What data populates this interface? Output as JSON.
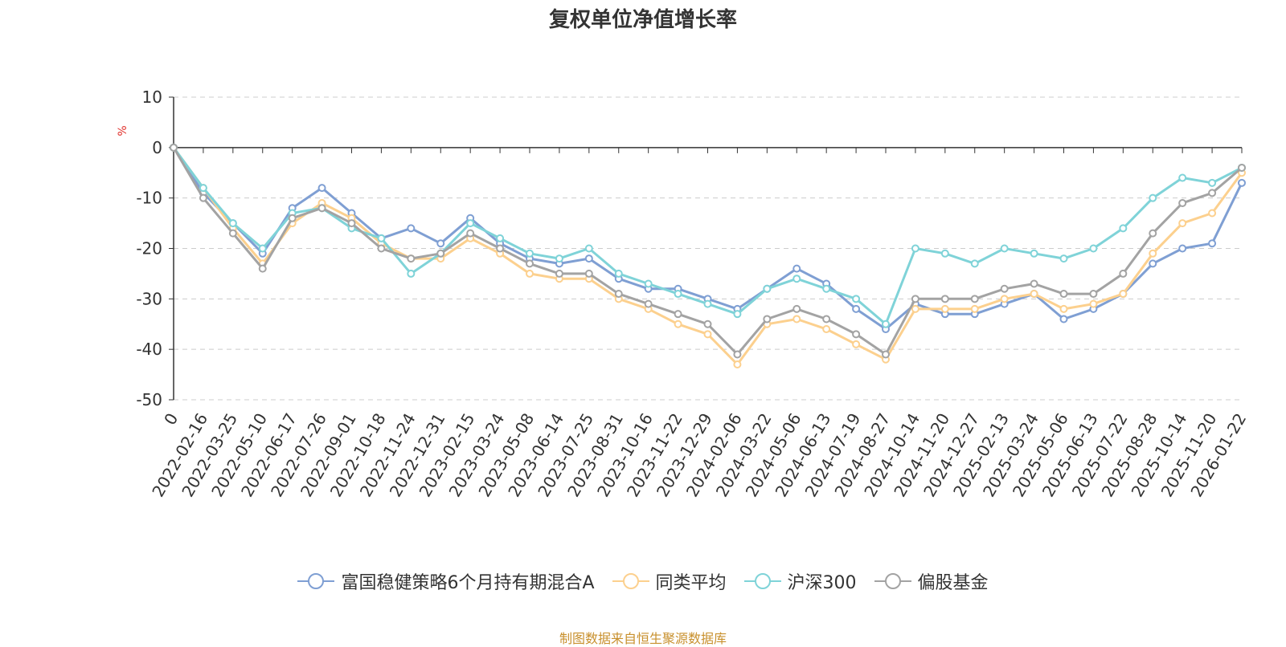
{
  "chart_data": {
    "type": "line",
    "title": "复权单位净值增长率",
    "ylabel": "%",
    "ylim": [
      -50,
      10
    ],
    "yticks": [
      10,
      0,
      -10,
      -20,
      -30,
      -40,
      -50
    ],
    "x_tick_labels": [
      "0",
      "2022-02-16",
      "2022-03-25",
      "2022-05-10",
      "2022-06-17",
      "2022-07-26",
      "2022-09-01",
      "2022-10-18",
      "2022-11-24",
      "2022-12-31",
      "2023-02-15",
      "2023-03-24",
      "2023-05-08",
      "2023-06-14",
      "2023-07-25",
      "2023-08-31",
      "2023-10-16",
      "2023-11-22",
      "2023-12-29",
      "2024-02-06",
      "2024-03-22",
      "2024-05-06",
      "2024-06-13",
      "2024-07-19",
      "2024-08-27",
      "2024-10-14",
      "2024-11-20",
      "2024-12-27",
      "2025-02-13",
      "2025-03-24",
      "2025-05-06",
      "2025-06-13",
      "2025-07-22",
      "2025-08-28",
      "2025-10-14",
      "2025-11-20",
      "2026-01-22"
    ],
    "x": [
      0,
      1,
      2,
      3,
      4,
      5,
      6,
      7,
      8,
      9,
      10,
      11,
      12,
      13,
      14,
      15,
      16,
      17,
      18,
      19,
      20,
      21,
      22,
      23,
      24,
      25,
      26,
      27,
      28,
      29,
      30,
      31,
      32,
      33,
      34,
      35,
      36
    ],
    "series": [
      {
        "name": "富国稳健策略6个月持有期混合A",
        "color": "#7f9fd3",
        "values": [
          0,
          -9,
          -15,
          -21,
          -12,
          -8,
          -13,
          -18,
          -16,
          -19,
          -14,
          -19,
          -22,
          -23,
          -22,
          -26,
          -28,
          -28,
          -30,
          -32,
          -28,
          -24,
          -27,
          -32,
          -36,
          -31,
          -33,
          -33,
          -31,
          -29,
          -34,
          -32,
          -29,
          -23,
          -20,
          -19,
          -7
        ]
      },
      {
        "name": "同类平均",
        "color": "#fcd08e",
        "values": [
          0,
          -8,
          -16,
          -23,
          -15,
          -11,
          -14,
          -19,
          -22,
          -22,
          -18,
          -21,
          -25,
          -26,
          -26,
          -30,
          -32,
          -35,
          -37,
          -43,
          -35,
          -34,
          -36,
          -39,
          -42,
          -32,
          -32,
          -32,
          -30,
          -29,
          -32,
          -31,
          -29,
          -21,
          -15,
          -13,
          -5
        ]
      },
      {
        "name": "沪深300",
        "color": "#7fd3d8",
        "values": [
          0,
          -8,
          -15,
          -20,
          -13,
          -12,
          -16,
          -18,
          -25,
          -21,
          -15,
          -18,
          -21,
          -22,
          -20,
          -25,
          -27,
          -29,
          -31,
          -33,
          -28,
          -26,
          -28,
          -30,
          -35,
          -20,
          -21,
          -23,
          -20,
          -21,
          -22,
          -20,
          -16,
          -10,
          -6,
          -7,
          -4
        ]
      },
      {
        "name": "偏股基金",
        "color": "#a3a3a3",
        "values": [
          0,
          -10,
          -17,
          -24,
          -14,
          -12,
          -15,
          -20,
          -22,
          -21,
          -17,
          -20,
          -23,
          -25,
          -25,
          -29,
          -31,
          -33,
          -35,
          -41,
          -34,
          -32,
          -34,
          -37,
          -41,
          -30,
          -30,
          -30,
          -28,
          -27,
          -29,
          -29,
          -25,
          -17,
          -11,
          -9,
          -4
        ]
      }
    ]
  },
  "source": "制图数据来自恒生聚源数据库"
}
